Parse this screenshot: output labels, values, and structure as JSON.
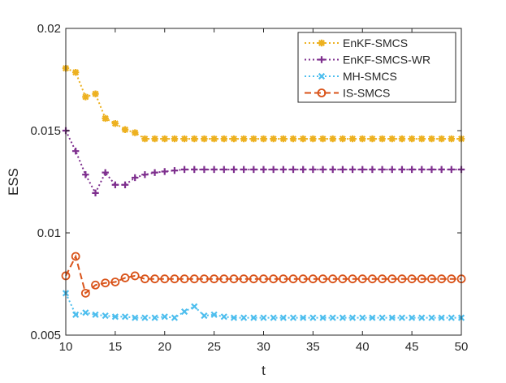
{
  "chart_data": {
    "type": "line",
    "xlabel": "t",
    "ylabel": "ESS",
    "xlim": [
      10,
      50
    ],
    "ylim": [
      0.005,
      0.02
    ],
    "xticks": [
      10,
      15,
      20,
      25,
      30,
      35,
      40,
      45,
      50
    ],
    "yticks": [
      0.005,
      0.01,
      0.015,
      0.02
    ],
    "xtick_labels": [
      "10",
      "15",
      "20",
      "25",
      "30",
      "35",
      "40",
      "45",
      "50"
    ],
    "ytick_labels": [
      "0.005",
      "0.01",
      "0.015",
      "0.02"
    ],
    "grid": false,
    "legend_position": "top-right",
    "x": [
      10,
      11,
      12,
      13,
      14,
      15,
      16,
      17,
      18,
      19,
      20,
      21,
      22,
      23,
      24,
      25,
      26,
      27,
      28,
      29,
      30,
      31,
      32,
      33,
      34,
      35,
      36,
      37,
      38,
      39,
      40,
      41,
      42,
      43,
      44,
      45,
      46,
      47,
      48,
      49,
      50
    ],
    "series": [
      {
        "name": "EnKF-SMCS",
        "color": "#EDB120",
        "line": "dotted",
        "marker": "asterisk",
        "values": [
          0.01805,
          0.01785,
          0.01665,
          0.0168,
          0.0156,
          0.01535,
          0.01505,
          0.0149,
          0.0146,
          0.0146,
          0.0146,
          0.0146,
          0.0146,
          0.0146,
          0.0146,
          0.0146,
          0.0146,
          0.0146,
          0.0146,
          0.0146,
          0.0146,
          0.0146,
          0.0146,
          0.0146,
          0.0146,
          0.0146,
          0.0146,
          0.0146,
          0.0146,
          0.0146,
          0.0146,
          0.0146,
          0.0146,
          0.0146,
          0.0146,
          0.0146,
          0.0146,
          0.0146,
          0.0146,
          0.0146,
          0.0146
        ]
      },
      {
        "name": "EnKF-SMCS-WR",
        "color": "#7E2F8E",
        "line": "dotted",
        "marker": "plus",
        "values": [
          0.015,
          0.014,
          0.01285,
          0.01195,
          0.01295,
          0.01235,
          0.01235,
          0.0127,
          0.01285,
          0.01295,
          0.013,
          0.01305,
          0.0131,
          0.0131,
          0.0131,
          0.0131,
          0.0131,
          0.0131,
          0.0131,
          0.0131,
          0.0131,
          0.0131,
          0.0131,
          0.0131,
          0.0131,
          0.0131,
          0.0131,
          0.0131,
          0.0131,
          0.0131,
          0.0131,
          0.0131,
          0.0131,
          0.0131,
          0.0131,
          0.0131,
          0.0131,
          0.0131,
          0.0131,
          0.0131,
          0.0131
        ]
      },
      {
        "name": "MH-SMCS",
        "color": "#4DBEEE",
        "line": "dotted",
        "marker": "x",
        "values": [
          0.00705,
          0.006,
          0.0061,
          0.006,
          0.00595,
          0.0059,
          0.0059,
          0.00585,
          0.00585,
          0.00585,
          0.0059,
          0.00585,
          0.00615,
          0.0064,
          0.00595,
          0.006,
          0.0059,
          0.00585,
          0.00585,
          0.00585,
          0.00585,
          0.00585,
          0.00585,
          0.00585,
          0.00585,
          0.00585,
          0.00585,
          0.00585,
          0.00585,
          0.00585,
          0.00585,
          0.00585,
          0.00585,
          0.00585,
          0.00585,
          0.00585,
          0.00585,
          0.00585,
          0.00585,
          0.00585,
          0.00585
        ]
      },
      {
        "name": "IS-SMCS",
        "color": "#D95319",
        "line": "dashed",
        "marker": "circle",
        "values": [
          0.0079,
          0.00885,
          0.00705,
          0.00745,
          0.00755,
          0.0076,
          0.0078,
          0.0079,
          0.00775,
          0.00775,
          0.00775,
          0.00775,
          0.00775,
          0.00775,
          0.00775,
          0.00775,
          0.00775,
          0.00775,
          0.00775,
          0.00775,
          0.00775,
          0.00775,
          0.00775,
          0.00775,
          0.00775,
          0.00775,
          0.00775,
          0.00775,
          0.00775,
          0.00775,
          0.00775,
          0.00775,
          0.00775,
          0.00775,
          0.00775,
          0.00775,
          0.00775,
          0.00775,
          0.00775,
          0.00775,
          0.00775
        ]
      }
    ]
  }
}
